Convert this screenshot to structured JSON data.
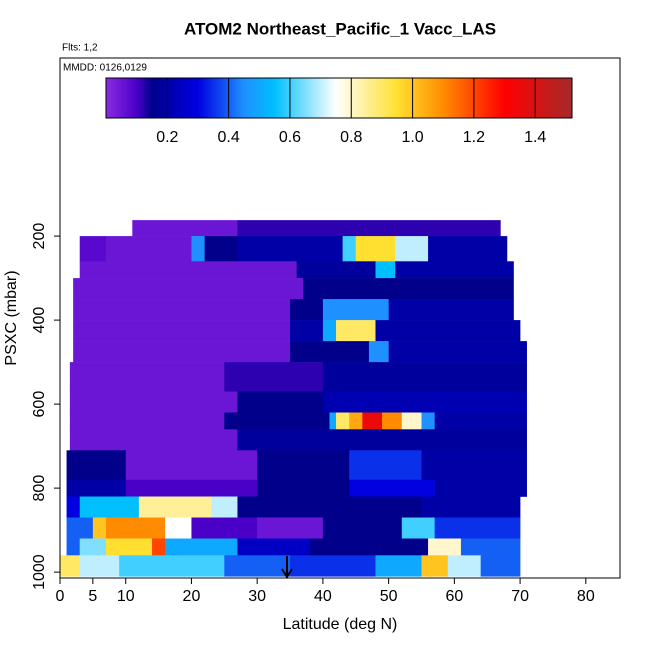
{
  "chart_data": {
    "type": "heatmap",
    "title": "ATOM2 Northeast_Pacific_1 Vacc_LAS",
    "annotations": [
      "Flts: 1,2",
      "MMDD: 0126,0129"
    ],
    "xlabel": "Latitude (deg N)",
    "ylabel": "PSXC (mbar)",
    "xlim": [
      0,
      85.2
    ],
    "xticks": [
      0,
      5,
      10,
      20,
      30,
      40,
      50,
      60,
      70,
      80
    ],
    "ylim": [
      -224,
      1014
    ],
    "yticks": [
      200,
      400,
      600,
      800,
      1000
    ],
    "clim": [
      0,
      1.52
    ],
    "cticks": [
      0.2,
      0.4,
      0.6,
      0.8,
      {
        "value": 1,
        "label": "1.0"
      },
      1.2,
      1.4
    ],
    "colorscale": [
      [
        0,
        "#8a2be2"
      ],
      [
        0.1,
        "#4b00c8"
      ],
      [
        0.15,
        "#00008b"
      ],
      [
        0.3,
        "#0000e0"
      ],
      [
        0.45,
        "#1e90ff"
      ],
      [
        0.55,
        "#00bfff"
      ],
      [
        0.75,
        "#ffffff"
      ],
      [
        0.95,
        "#ffe030"
      ],
      [
        1.1,
        "#ff8c00"
      ],
      [
        1.3,
        "#ff0000"
      ],
      [
        1.52,
        "#a52a2a"
      ]
    ],
    "rows": [
      {
        "p": [
          162,
          200
        ],
        "lat": [
          11,
          27,
          67
        ],
        "values": [
          0.05,
          0.12
        ]
      },
      {
        "p": [
          200,
          260
        ],
        "lat": [
          3,
          7,
          20,
          22,
          27,
          43,
          45,
          51,
          56,
          68
        ],
        "values": [
          0.08,
          0.05,
          0.45,
          0.15,
          0.2,
          0.6,
          0.95,
          0.7,
          0.2
        ]
      },
      {
        "p": [
          260,
          300
        ],
        "lat": [
          3,
          36,
          48,
          51,
          69
        ],
        "values": [
          0.05,
          0.18,
          0.55,
          0.2
        ]
      },
      {
        "p": [
          300,
          350
        ],
        "lat": [
          2,
          37,
          69
        ],
        "values": [
          0.05,
          0.15
        ]
      },
      {
        "p": [
          350,
          400
        ],
        "lat": [
          2,
          35,
          40,
          50,
          69
        ],
        "values": [
          0.05,
          0.15,
          0.45,
          0.2
        ]
      },
      {
        "p": [
          400,
          450
        ],
        "lat": [
          2,
          35,
          40,
          42,
          48,
          70
        ],
        "values": [
          0.05,
          0.2,
          0.5,
          0.9,
          0.2
        ]
      },
      {
        "p": [
          450,
          500
        ],
        "lat": [
          2,
          35,
          47,
          50,
          71
        ],
        "values": [
          0.05,
          0.15,
          0.45,
          0.2
        ]
      },
      {
        "p": [
          500,
          570
        ],
        "lat": [
          1.5,
          25,
          40,
          71
        ],
        "values": [
          0.05,
          0.12,
          0.18
        ]
      },
      {
        "p": [
          570,
          620
        ],
        "lat": [
          1.5,
          27,
          40,
          71
        ],
        "values": [
          0.05,
          0.15,
          0.22
        ]
      },
      {
        "p": [
          620,
          660
        ],
        "lat": [
          1.5,
          25,
          41,
          42,
          44,
          46,
          49,
          52,
          55,
          57,
          71
        ],
        "values": [
          0.05,
          0.15,
          0.5,
          0.9,
          1.05,
          1.35,
          1.1,
          0.8,
          0.45,
          0.2
        ]
      },
      {
        "p": [
          660,
          710
        ],
        "lat": [
          1.5,
          27,
          71
        ],
        "values": [
          0.05,
          0.18
        ]
      },
      {
        "p": [
          710,
          780
        ],
        "lat": [
          1,
          10,
          30,
          44,
          55,
          71
        ],
        "values": [
          0.15,
          0.05,
          0.15,
          0.35,
          0.2
        ]
      },
      {
        "p": [
          780,
          820
        ],
        "lat": [
          1,
          10,
          30,
          44,
          57,
          71
        ],
        "values": [
          0.2,
          0.1,
          0.15,
          0.3,
          0.2
        ]
      },
      {
        "p": [
          820,
          870
        ],
        "lat": [
          1,
          3,
          12,
          23,
          27,
          39,
          55,
          70
        ],
        "values": [
          0.3,
          0.55,
          0.85,
          0.7,
          0.15,
          0.15,
          0.2
        ]
      },
      {
        "p": [
          870,
          920
        ],
        "lat": [
          1,
          5,
          7,
          16,
          20,
          30,
          40,
          52,
          57,
          70
        ],
        "values": [
          0.4,
          1.0,
          1.1,
          0.75,
          0.1,
          0.05,
          0.15,
          0.6,
          0.35
        ]
      },
      {
        "p": [
          920,
          960
        ],
        "lat": [
          1,
          3,
          7,
          14,
          16,
          27,
          38,
          56,
          61,
          70
        ],
        "values": [
          0.4,
          0.65,
          0.95,
          1.2,
          0.5,
          0.25,
          0.15,
          0.8,
          0.4
        ]
      },
      {
        "p": [
          960,
          1010
        ],
        "lat": [
          0,
          3,
          9,
          25,
          35,
          48,
          55,
          59,
          64,
          70
        ],
        "values": [
          0.9,
          0.7,
          0.6,
          0.4,
          0.35,
          0.5,
          1.0,
          0.7,
          0.4
        ]
      }
    ]
  }
}
